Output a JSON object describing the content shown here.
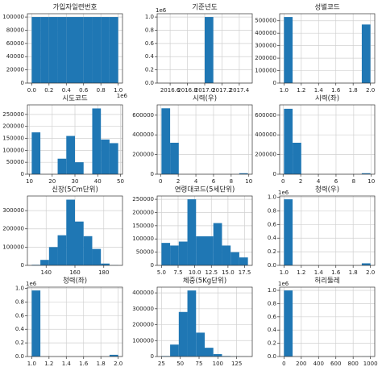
{
  "chart_data": [
    {
      "type": "histogram",
      "title": "가입자일련번호",
      "color": "#1f77b4",
      "grid": true,
      "bins": [
        0,
        100000,
        200000,
        300000,
        400000,
        500000,
        600000,
        700000,
        800000,
        900000,
        1000000
      ],
      "values": [
        100000,
        100000,
        100000,
        100000,
        100000,
        100000,
        100000,
        100000,
        100000,
        100000
      ],
      "xlim": [
        -50000,
        1050000
      ],
      "ylim": [
        0,
        105000
      ],
      "xticks": [
        {
          "value": 0,
          "label": "0.0"
        },
        {
          "value": 200000,
          "label": "0.2"
        },
        {
          "value": 400000,
          "label": "0.4"
        },
        {
          "value": 600000,
          "label": "0.6"
        },
        {
          "value": 800000,
          "label": "0.8"
        },
        {
          "value": 1000000,
          "label": "1.0"
        }
      ],
      "x_offset": "1e6",
      "yticks": [
        0,
        20000,
        40000,
        60000,
        80000,
        100000
      ]
    },
    {
      "type": "histogram",
      "title": "기준년도",
      "color": "#1f77b4",
      "grid": true,
      "bins": [
        2016.5,
        2016.6,
        2016.7,
        2016.8,
        2016.9,
        2017.0,
        2017.1,
        2017.2,
        2017.3,
        2017.4,
        2017.5
      ],
      "values": [
        0,
        0,
        0,
        0,
        0,
        1000000,
        0,
        0,
        0,
        0
      ],
      "xlim": [
        2016.45,
        2017.55
      ],
      "ylim": [
        0,
        1050000
      ],
      "xticks": [
        2016.6,
        2016.8,
        {
          "value": 2017,
          "label": "2017.0"
        },
        2017.2,
        2017.4
      ],
      "yticks": [
        {
          "value": 0,
          "label": "0.0"
        },
        {
          "value": 200000,
          "label": "0.2"
        },
        {
          "value": 400000,
          "label": "0.4"
        },
        {
          "value": 600000,
          "label": "0.6"
        },
        {
          "value": 800000,
          "label": "0.8"
        },
        {
          "value": 1000000,
          "label": "1.0"
        }
      ],
      "y_offset": "1e6"
    },
    {
      "type": "histogram",
      "title": "성별코드",
      "color": "#1f77b4",
      "grid": true,
      "bins": [
        1.0,
        1.1,
        1.2,
        1.3,
        1.4,
        1.5,
        1.6,
        1.7,
        1.8,
        1.9,
        2.0
      ],
      "values": [
        530000,
        0,
        0,
        0,
        0,
        0,
        0,
        0,
        0,
        470000
      ],
      "xlim": [
        0.95,
        2.05
      ],
      "ylim": [
        0,
        556500
      ],
      "xticks": [
        {
          "value": 1,
          "label": "1.0"
        },
        1.2,
        1.4,
        1.6,
        1.8,
        {
          "value": 2,
          "label": "2.0"
        }
      ],
      "yticks": [
        0,
        100000,
        200000,
        300000,
        400000,
        500000
      ]
    },
    {
      "type": "histogram",
      "title": "시도코드",
      "color": "#1f77b4",
      "grid": true,
      "bins": [
        11,
        14.8,
        18.6,
        22.4,
        26.2,
        30,
        33.8,
        37.6,
        41.4,
        45.2,
        49
      ],
      "values": [
        175000,
        0,
        0,
        65000,
        160000,
        50000,
        0,
        275000,
        145000,
        130000
      ],
      "xlim": [
        9.1,
        50.9
      ],
      "ylim": [
        0,
        290000
      ],
      "xticks": [
        10,
        20,
        30,
        40,
        50
      ],
      "yticks": [
        0,
        50000,
        100000,
        150000,
        200000,
        250000
      ]
    },
    {
      "type": "histogram",
      "title": "시력(우)",
      "color": "#1f77b4",
      "grid": true,
      "bins": [
        0.1,
        1.08,
        2.06,
        3.04,
        4.02,
        5.0,
        5.98,
        6.96,
        7.94,
        8.92,
        9.9
      ],
      "values": [
        670000,
        320000,
        0,
        0,
        0,
        0,
        0,
        0,
        0,
        10000
      ],
      "xlim": [
        -0.39,
        10.39
      ],
      "ylim": [
        0,
        705000
      ],
      "xticks": [
        0,
        2,
        4,
        6,
        8,
        10
      ],
      "yticks": [
        0,
        200000,
        400000,
        600000
      ]
    },
    {
      "type": "histogram",
      "title": "시력(좌)",
      "color": "#1f77b4",
      "grid": true,
      "bins": [
        0.1,
        1.08,
        2.06,
        3.04,
        4.02,
        5.0,
        5.98,
        6.96,
        7.94,
        8.92,
        9.9
      ],
      "values": [
        665000,
        320000,
        0,
        0,
        0,
        0,
        0,
        0,
        0,
        10000
      ],
      "xlim": [
        -0.39,
        10.39
      ],
      "ylim": [
        0,
        705000
      ],
      "xticks": [
        0,
        2,
        4,
        6,
        8,
        10
      ],
      "yticks": [
        0,
        200000,
        400000,
        600000
      ]
    },
    {
      "type": "histogram",
      "title": "신장(5Cm단위)",
      "color": "#1f77b4",
      "grid": true,
      "bins": [
        130,
        136,
        142,
        148,
        154,
        160,
        166,
        172,
        178,
        184,
        190
      ],
      "values": [
        3000,
        30000,
        100000,
        165000,
        360000,
        240000,
        160000,
        90000,
        10000,
        1000
      ],
      "xlim": [
        127,
        193
      ],
      "ylim": [
        0,
        380000
      ],
      "xticks": [
        140,
        160,
        180
      ],
      "yticks": [
        0,
        100000,
        200000,
        300000
      ]
    },
    {
      "type": "histogram",
      "title": "연령대코드(5세단위)",
      "color": "#1f77b4",
      "grid": true,
      "bins": [
        5,
        6.3,
        7.6,
        8.9,
        10.2,
        11.5,
        12.8,
        14.1,
        15.4,
        16.7,
        18
      ],
      "values": [
        85000,
        75000,
        90000,
        250000,
        110000,
        110000,
        160000,
        75000,
        50000,
        30000
      ],
      "xlim": [
        4.35,
        18.65
      ],
      "ylim": [
        0,
        262500
      ],
      "xticks": [
        {
          "value": 5,
          "label": "5.0"
        },
        7.5,
        {
          "value": 10,
          "label": "10.0"
        },
        12.5,
        {
          "value": 15,
          "label": "15.0"
        },
        17.5
      ],
      "yticks": [
        0,
        50000,
        100000,
        150000,
        200000,
        250000
      ]
    },
    {
      "type": "histogram",
      "title": "청력(우)",
      "color": "#1f77b4",
      "grid": true,
      "bins": [
        1.0,
        1.1,
        1.2,
        1.3,
        1.4,
        1.5,
        1.6,
        1.7,
        1.8,
        1.9,
        2.0
      ],
      "values": [
        970000,
        0,
        0,
        0,
        0,
        0,
        0,
        0,
        0,
        30000
      ],
      "xlim": [
        0.95,
        2.05
      ],
      "ylim": [
        0,
        1018500
      ],
      "xticks": [
        {
          "value": 1,
          "label": "1.0"
        },
        1.2,
        1.4,
        1.6,
        1.8,
        {
          "value": 2,
          "label": "2.0"
        }
      ],
      "yticks": [
        {
          "value": 0,
          "label": "0.0"
        },
        {
          "value": 200000,
          "label": "0.2"
        },
        {
          "value": 400000,
          "label": "0.4"
        },
        {
          "value": 600000,
          "label": "0.6"
        },
        {
          "value": 800000,
          "label": "0.8"
        },
        {
          "value": 1000000,
          "label": "1.0"
        }
      ],
      "y_offset": "1e6"
    },
    {
      "type": "histogram",
      "title": "청력(좌)",
      "color": "#1f77b4",
      "grid": true,
      "bins": [
        1.0,
        1.1,
        1.2,
        1.3,
        1.4,
        1.5,
        1.6,
        1.7,
        1.8,
        1.9,
        2.0
      ],
      "values": [
        970000,
        0,
        0,
        0,
        0,
        0,
        0,
        0,
        0,
        25000
      ],
      "xlim": [
        0.95,
        2.05
      ],
      "ylim": [
        0,
        1018500
      ],
      "xticks": [
        {
          "value": 1,
          "label": "1.0"
        },
        1.2,
        1.4,
        1.6,
        1.8,
        {
          "value": 2,
          "label": "2.0"
        }
      ],
      "yticks": [
        {
          "value": 0,
          "label": "0.0"
        },
        {
          "value": 200000,
          "label": "0.2"
        },
        {
          "value": 400000,
          "label": "0.4"
        },
        {
          "value": 600000,
          "label": "0.6"
        },
        {
          "value": 800000,
          "label": "0.8"
        },
        {
          "value": 1000000,
          "label": "1.0"
        }
      ],
      "y_offset": "1e6"
    },
    {
      "type": "histogram",
      "title": "체중(5Kg단위)",
      "color": "#1f77b4",
      "grid": true,
      "bins": [
        25,
        36.5,
        48,
        59.5,
        71,
        82.5,
        94,
        105.5,
        117,
        128.5,
        140
      ],
      "values": [
        3000,
        75000,
        280000,
        415000,
        150000,
        55000,
        15000,
        3000,
        1000,
        500
      ],
      "xlim": [
        19.25,
        145.75
      ],
      "ylim": [
        0,
        436000
      ],
      "xticks": [
        25,
        50,
        75,
        100,
        125
      ],
      "yticks": [
        0,
        100000,
        200000,
        300000,
        400000
      ]
    },
    {
      "type": "histogram",
      "title": "허리둘레",
      "color": "#1f77b4",
      "grid": true,
      "bins": [
        0,
        100,
        200,
        300,
        400,
        500,
        600,
        700,
        800,
        900,
        1000
      ],
      "values": [
        999000,
        0,
        0,
        0,
        0,
        0,
        0,
        0,
        0,
        1000
      ],
      "xlim": [
        -50,
        1050
      ],
      "ylim": [
        0,
        1048950
      ],
      "xticks": [
        0,
        200,
        400,
        600,
        800,
        1000
      ],
      "yticks": [
        {
          "value": 0,
          "label": "0.0"
        },
        {
          "value": 200000,
          "label": "0.2"
        },
        {
          "value": 400000,
          "label": "0.4"
        },
        {
          "value": 600000,
          "label": "0.6"
        },
        {
          "value": 800000,
          "label": "0.8"
        },
        {
          "value": 1000000,
          "label": "1.0"
        }
      ],
      "y_offset": "1e6"
    }
  ]
}
